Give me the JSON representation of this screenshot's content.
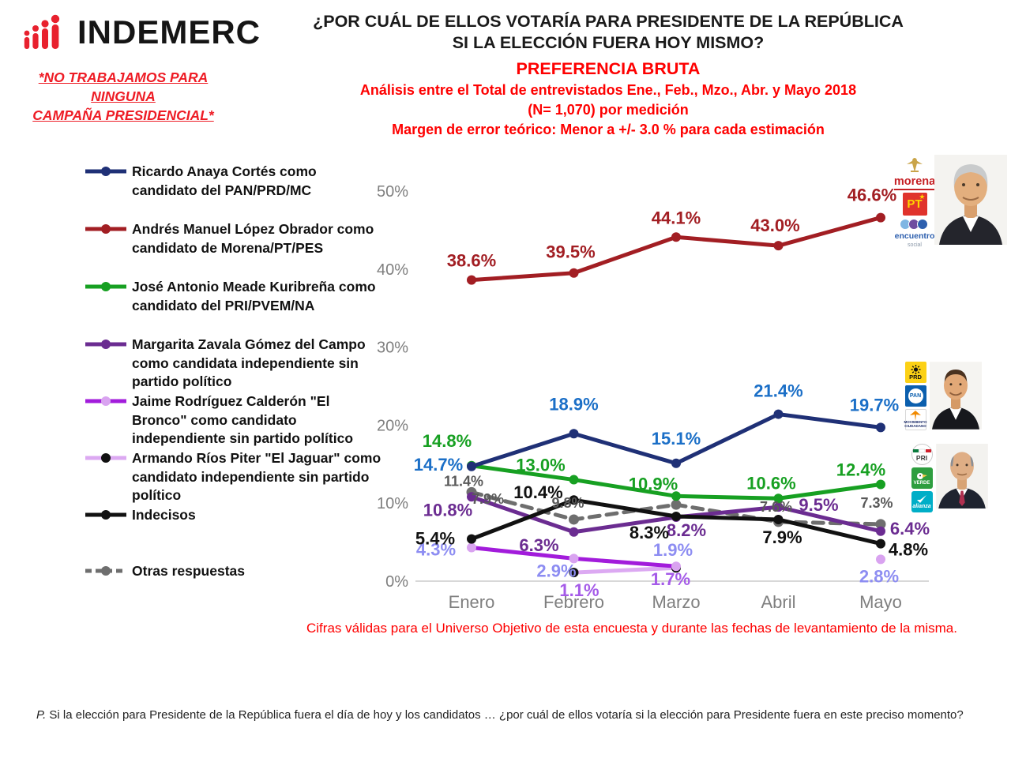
{
  "header": {
    "logo_text": "INDEMERC",
    "disclaimer_line1": "*NO TRABAJAMOS PARA NINGUNA",
    "disclaimer_line2": "CAMPAÑA PRESIDENCIAL*",
    "title_line1": "¿POR CUÁL DE ELLOS VOTARÍA PARA PRESIDENTE DE LA REPÚBLICA",
    "title_line2": "SI LA ELECCIÓN FUERA HOY MISMO?",
    "subtitle": "PREFERENCIA BRUTA",
    "analysis_line1": "Análisis entre el Total de entrevistados Ene., Feb., Mzo., Abr. y Mayo 2018",
    "analysis_line2": "(N= 1,070) por medición",
    "margin_line": "Margen de error teórico: Menor a +/- 3.0 % para cada estimación"
  },
  "chart_data": {
    "type": "line",
    "categories": [
      "Enero",
      "Febrero",
      "Marzo",
      "Abril",
      "Mayo"
    ],
    "ylim": [
      0,
      50
    ],
    "grid": false,
    "legend_position": "left",
    "y_ticks": [
      {
        "v": 0,
        "label": "0%"
      },
      {
        "v": 10,
        "label": "10%"
      },
      {
        "v": 20,
        "label": "20%"
      },
      {
        "v": 30,
        "label": "30%"
      },
      {
        "v": 40,
        "label": "40%"
      },
      {
        "v": 50,
        "label": "50%"
      }
    ],
    "series": [
      {
        "id": "anaya",
        "name": "Ricardo Anaya Cortés como candidato del PAN/PRD/MC",
        "legend_lines": [
          "Ricardo Anaya Cortés como",
          "candidato del PAN/PRD/MC"
        ],
        "color": "#1f3076",
        "label_color": "#1b6fc7",
        "values": [
          14.7,
          18.9,
          15.1,
          21.4,
          19.7
        ],
        "labels": [
          "14.7%",
          "18.9%",
          "15.1%",
          "21.4%",
          "19.7%"
        ],
        "label_offsets": [
          [
            -42,
            5
          ],
          [
            0,
            -30
          ],
          [
            0,
            -24
          ],
          [
            0,
            -22
          ],
          [
            -8,
            -21
          ]
        ]
      },
      {
        "id": "amlo",
        "name": "Andrés Manuel López Obrador como candidato de Morena/PT/PES",
        "legend_lines": [
          "Andrés Manuel López Obrador como",
          "candidato de Morena/PT/PES"
        ],
        "color": "#a21e23",
        "values": [
          38.6,
          39.5,
          44.1,
          43.0,
          46.6
        ],
        "labels": [
          "38.6%",
          "39.5%",
          "44.1%",
          "43.0%",
          "46.6%"
        ],
        "label_offsets": [
          [
            0,
            -17
          ],
          [
            -4,
            -19
          ],
          [
            0,
            -17
          ],
          [
            -4,
            -18
          ],
          [
            -11,
            -21
          ]
        ]
      },
      {
        "id": "meade",
        "name": "José Antonio Meade Kuribreña como candidato del PRI/PVEM/NA",
        "legend_lines": [
          "José Antonio Meade Kuribreña como",
          "candidato del PRI/PVEM/NA"
        ],
        "color": "#17a022",
        "values": [
          14.8,
          13.0,
          10.9,
          10.6,
          12.4
        ],
        "labels": [
          "14.8%",
          "13.0%",
          "10.9%",
          "10.6%",
          "12.4%"
        ],
        "label_offsets": [
          [
            -31,
            -24
          ],
          [
            -42,
            -11
          ],
          [
            -29,
            -8
          ],
          [
            -9,
            -12
          ],
          [
            -25,
            -11
          ]
        ]
      },
      {
        "id": "zavala",
        "name": "Margarita Zavala Gómez del Campo como candidata independiente sin partido político",
        "legend_lines": [
          "Margarita Zavala Gómez del Campo",
          "como candidata independiente sin",
          "partido político"
        ],
        "color": "#6b2c91",
        "values": [
          10.8,
          6.3,
          8.2,
          9.5,
          6.4
        ],
        "labels": [
          "10.8%",
          "6.3%",
          "8.2%",
          "9.5%",
          "6.4%"
        ],
        "label_offsets": [
          [
            -30,
            24
          ],
          [
            -44,
            24
          ],
          [
            13,
            24
          ],
          [
            51,
            5
          ],
          [
            37,
            4
          ]
        ]
      },
      {
        "id": "bronco",
        "name": "Jaime Rodríguez Calderón \"El Bronco\" como candidato independiente sin partido político",
        "legend_lines": [
          "Jaime Rodríguez Calderón \"El",
          "Bronco\" como candidato",
          "independiente sin partido político"
        ],
        "color": "#a21cdb",
        "marker_color": "#d9a3f0",
        "label_color": "#8d8df2",
        "values": [
          4.3,
          2.9,
          1.9,
          null,
          2.8
        ],
        "labels": [
          "4.3%",
          "2.9%",
          "1.9%",
          null,
          "2.8%"
        ],
        "label_offsets": [
          [
            -45,
            10
          ],
          [
            -22,
            23
          ],
          [
            -4,
            -13
          ],
          null,
          [
            -2,
            29
          ]
        ]
      },
      {
        "id": "jaguar",
        "name": "Armando Ríos Piter \"El Jaguar\" como candidato independiente sin partido político",
        "legend_lines": [
          "Armando Ríos Piter \"El Jaguar\" como",
          "candidato independiente sin partido",
          "político"
        ],
        "color": "#dca9f2",
        "marker_color": "#111111",
        "label_color": "#a55be8",
        "values": [
          null,
          1.1,
          1.7,
          null,
          null
        ],
        "labels": [
          null,
          "1.1%",
          "1.7%",
          null,
          null
        ],
        "label_offsets": [
          null,
          [
            7,
            30
          ],
          [
            -7,
            22
          ],
          null,
          null
        ]
      },
      {
        "id": "indecisos",
        "name": "Indecisos",
        "legend_lines": [
          "Indecisos"
        ],
        "color": "#111111",
        "values": [
          5.4,
          10.4,
          8.3,
          7.9,
          4.8
        ],
        "labels": [
          "5.4%",
          "10.4%",
          "8.3%",
          "7.9%",
          "4.8%"
        ],
        "label_offsets": [
          [
            -46,
            7
          ],
          [
            -45,
            -2
          ],
          [
            -34,
            28
          ],
          [
            5,
            30
          ],
          [
            35,
            15
          ]
        ]
      },
      {
        "id": "otras",
        "name": "Otras respuestas",
        "legend_lines": [
          "Otras respuestas"
        ],
        "color": "#6e6e6e",
        "label_color": "#595959",
        "dashed": true,
        "small_labels": true,
        "values": [
          11.4,
          7.9,
          9.8,
          7.6,
          7.3
        ],
        "labels": [
          "11.4%",
          "7.9%",
          "9.8%",
          "7.6%",
          "7.3%"
        ],
        "label_offsets": [
          [
            -10,
            -8
          ],
          [
            -109,
            -20
          ],
          [
            -137,
            4
          ],
          [
            -3,
            -13
          ],
          [
            -5,
            -21
          ]
        ]
      }
    ]
  },
  "candidates": {
    "amlo_logos": {
      "morena": "morena",
      "pt": "PT",
      "pt_star": "★",
      "encuentro": "encuentro",
      "encuentro_sub": "social"
    },
    "anaya_logos": {
      "prd": "PRD",
      "pan": "PAN",
      "mc": "MOVIMIENTO CIUDADANO"
    },
    "meade_logos": {
      "pri": "PRI",
      "verde": "VERDE",
      "alianza": "alianza"
    }
  },
  "footer": {
    "validity_note": "Cifras válidas para el Universo Objetivo de esta encuesta y durante las fechas de levantamiento de la misma.",
    "question_prefix": "P.",
    "question_text": " Si la elección para Presidente de la República fuera el día de hoy y los candidatos … ¿por cuál de ellos votaría si la elección para Presidente fuera en este preciso momento?"
  }
}
